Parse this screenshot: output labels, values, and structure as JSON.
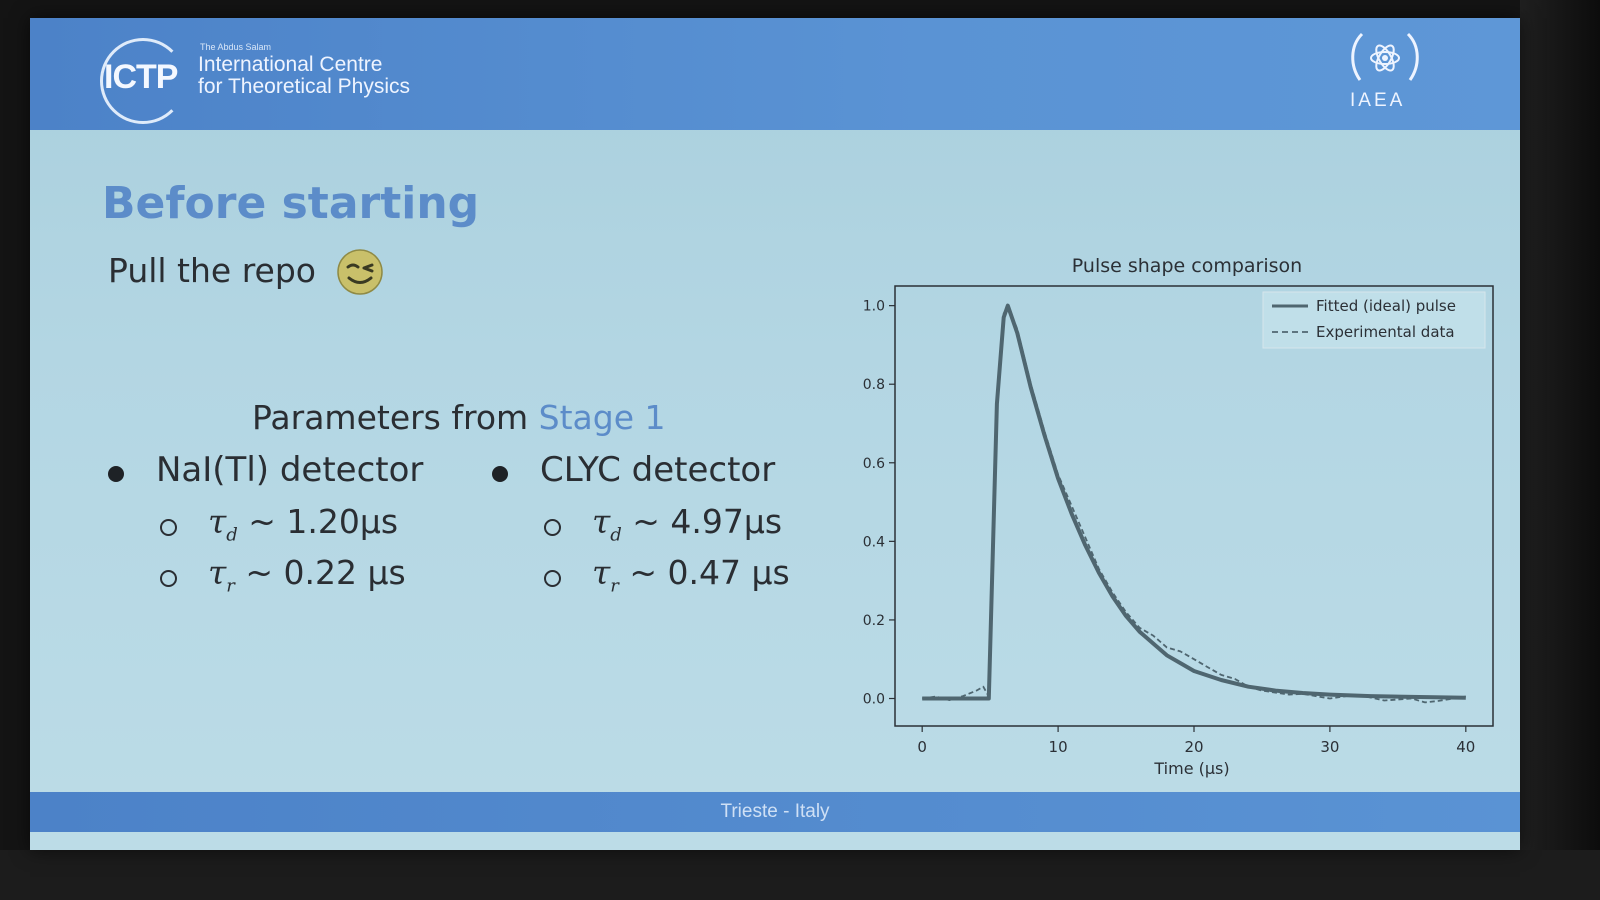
{
  "header": {
    "ictp_logo_text": "ICTP",
    "ictp_tagline": "The Abdus Salam",
    "ictp_name_line1": "International Centre",
    "ictp_name_line2": "for Theoretical Physics",
    "iaea_text": "IAEA"
  },
  "slide": {
    "title": "Before starting",
    "subtitle": "Pull the repo",
    "emoji": "winking-face",
    "params_prefix": "Parameters from ",
    "params_link": "Stage 1",
    "detectors": [
      {
        "name": "NaI(Tl) detector",
        "tau_d_sym": "τ",
        "tau_d_sub": "d",
        "tau_d_val": " ~ 1.20μs",
        "tau_r_sym": "τ",
        "tau_r_sub": "r",
        "tau_r_val": " ~ 0.22 μs"
      },
      {
        "name": "CLYC detector",
        "tau_d_sym": "τ",
        "tau_d_sub": "d",
        "tau_d_val": " ~ 4.97μs",
        "tau_r_sym": "τ",
        "tau_r_sub": "r",
        "tau_r_val": " ~ 0.47 μs"
      }
    ]
  },
  "footer": {
    "text": "Trieste - Italy"
  },
  "colors": {
    "accent": "#5c8cc9",
    "header": "#5a93d4",
    "line": "#4f6670"
  },
  "chart_data": {
    "type": "line",
    "title": "Pulse shape comparison",
    "xlabel": "Time (μs)",
    "ylabel": "",
    "xlim": [
      -2,
      42
    ],
    "ylim": [
      -0.07,
      1.05
    ],
    "x_ticks": [
      "0",
      "10",
      "20",
      "30",
      "40"
    ],
    "y_ticks": [
      "0.0",
      "0.2",
      "0.4",
      "0.6",
      "0.8",
      "1.0"
    ],
    "legend_position": "top-right",
    "grid": false,
    "series": [
      {
        "name": "Fitted (ideal) pulse",
        "style": "solid",
        "x": [
          0,
          4,
          4.9,
          5.1,
          5.5,
          6,
          6.3,
          7,
          8,
          9,
          10,
          11,
          12,
          13,
          14,
          15,
          16,
          17,
          18,
          19,
          20,
          22,
          24,
          26,
          28,
          30,
          33,
          36,
          40
        ],
        "y": [
          0.0,
          0.0,
          0.0,
          0.25,
          0.75,
          0.97,
          1.0,
          0.93,
          0.79,
          0.67,
          0.56,
          0.47,
          0.39,
          0.32,
          0.26,
          0.21,
          0.17,
          0.14,
          0.11,
          0.09,
          0.07,
          0.047,
          0.03,
          0.02,
          0.014,
          0.01,
          0.006,
          0.004,
          0.002
        ]
      },
      {
        "name": "Experimental data",
        "style": "dashed",
        "x": [
          0,
          1,
          2,
          3,
          4,
          4.5,
          4.9,
          5.1,
          5.5,
          6,
          6.3,
          7,
          8,
          9,
          10,
          11,
          12,
          13,
          14,
          15,
          16,
          17,
          18,
          19,
          20,
          21,
          22,
          23,
          24,
          25,
          26,
          27,
          28,
          30,
          32,
          34,
          36,
          37,
          38,
          40
        ],
        "y": [
          0.0,
          0.005,
          -0.004,
          0.006,
          0.02,
          0.03,
          0.005,
          0.26,
          0.76,
          0.98,
          1.0,
          0.94,
          0.8,
          0.68,
          0.57,
          0.49,
          0.41,
          0.33,
          0.27,
          0.22,
          0.18,
          0.16,
          0.13,
          0.12,
          0.1,
          0.08,
          0.06,
          0.05,
          0.03,
          0.02,
          0.015,
          0.01,
          0.012,
          0.0,
          0.01,
          -0.005,
          0.0,
          -0.01,
          -0.006,
          0.005
        ]
      }
    ]
  }
}
